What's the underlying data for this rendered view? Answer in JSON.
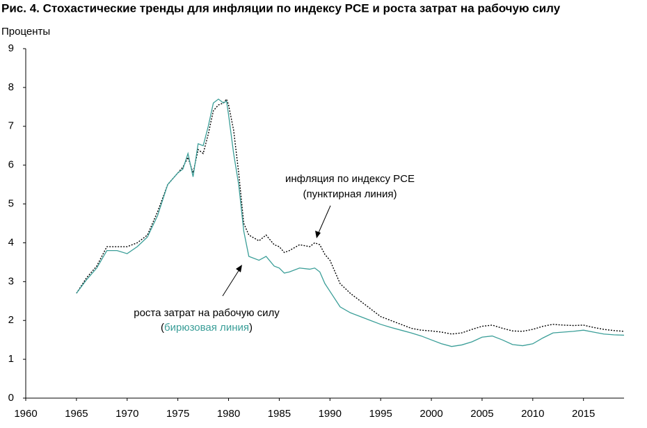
{
  "chart_data": {
    "type": "line",
    "title": "Рис. 4. Стохастические тренды для инфляции по индексу PCE и роста затрат на рабочую силу",
    "y_label": "Проценты",
    "xlim": [
      1960,
      2019
    ],
    "xticks": [
      1960,
      1965,
      1970,
      1975,
      1980,
      1985,
      1990,
      1995,
      2000,
      2005,
      2010,
      2015
    ],
    "ylim": [
      0,
      9
    ],
    "yticks": [
      0,
      1,
      2,
      3,
      4,
      5,
      6,
      7,
      8,
      9
    ],
    "grid": false,
    "x": [
      1965,
      1966,
      1967,
      1968,
      1969,
      1970,
      1971,
      1972,
      1973,
      1974,
      1975,
      1975.5,
      1976,
      1976.5,
      1977,
      1977.5,
      1978,
      1978.5,
      1979,
      1979.5,
      1979.8,
      1980,
      1980.5,
      1981,
      1981.5,
      1982,
      1983,
      1983.7,
      1984.5,
      1985,
      1985.5,
      1986,
      1987,
      1988,
      1988.5,
      1989,
      1989.5,
      1990,
      1991,
      1992,
      1993,
      1994,
      1995,
      1996,
      1997,
      1998,
      1999,
      2000,
      2001,
      2002,
      2003,
      2004,
      2005,
      2006,
      2007,
      2008,
      2009,
      2010,
      2011,
      2012,
      2013,
      2014,
      2015,
      2016,
      2017,
      2018,
      2019
    ],
    "series": [
      {
        "color": "#000000",
        "dashed": true,
        "values": [
          2.7,
          3.1,
          3.4,
          3.9,
          3.9,
          3.9,
          4.0,
          4.2,
          4.8,
          5.5,
          5.8,
          5.95,
          6.2,
          5.8,
          6.4,
          6.3,
          6.8,
          7.4,
          7.55,
          7.6,
          7.7,
          7.55,
          6.9,
          5.8,
          4.5,
          4.2,
          4.05,
          4.2,
          3.95,
          3.9,
          3.75,
          3.8,
          3.95,
          3.9,
          4.0,
          3.95,
          3.7,
          3.55,
          2.95,
          2.7,
          2.5,
          2.3,
          2.1,
          2.0,
          1.9,
          1.8,
          1.75,
          1.73,
          1.7,
          1.65,
          1.68,
          1.77,
          1.85,
          1.88,
          1.8,
          1.73,
          1.72,
          1.77,
          1.85,
          1.9,
          1.88,
          1.87,
          1.88,
          1.82,
          1.77,
          1.74,
          1.72
        ]
      },
      {
        "color": "#3a9e98",
        "dashed": false,
        "values": [
          2.7,
          3.05,
          3.35,
          3.8,
          3.8,
          3.72,
          3.9,
          4.15,
          4.7,
          5.5,
          5.8,
          5.9,
          6.3,
          5.7,
          6.55,
          6.5,
          7.0,
          7.6,
          7.7,
          7.6,
          7.65,
          7.3,
          6.3,
          5.5,
          4.3,
          3.65,
          3.55,
          3.65,
          3.4,
          3.35,
          3.22,
          3.25,
          3.35,
          3.32,
          3.35,
          3.25,
          2.95,
          2.75,
          2.35,
          2.2,
          2.1,
          2.0,
          1.9,
          1.82,
          1.75,
          1.68,
          1.6,
          1.5,
          1.4,
          1.33,
          1.37,
          1.45,
          1.57,
          1.6,
          1.5,
          1.38,
          1.35,
          1.4,
          1.55,
          1.68,
          1.7,
          1.72,
          1.75,
          1.7,
          1.65,
          1.63,
          1.62
        ]
      }
    ],
    "annotations": [
      {
        "lines": [
          "инфляция по индексу PCE",
          "(пунктирная линия)"
        ]
      },
      {
        "lines": [
          "роста затрат на рабочую силу"
        ],
        "parts": [
          "(",
          "бирюзовая линия",
          ")"
        ]
      }
    ]
  }
}
